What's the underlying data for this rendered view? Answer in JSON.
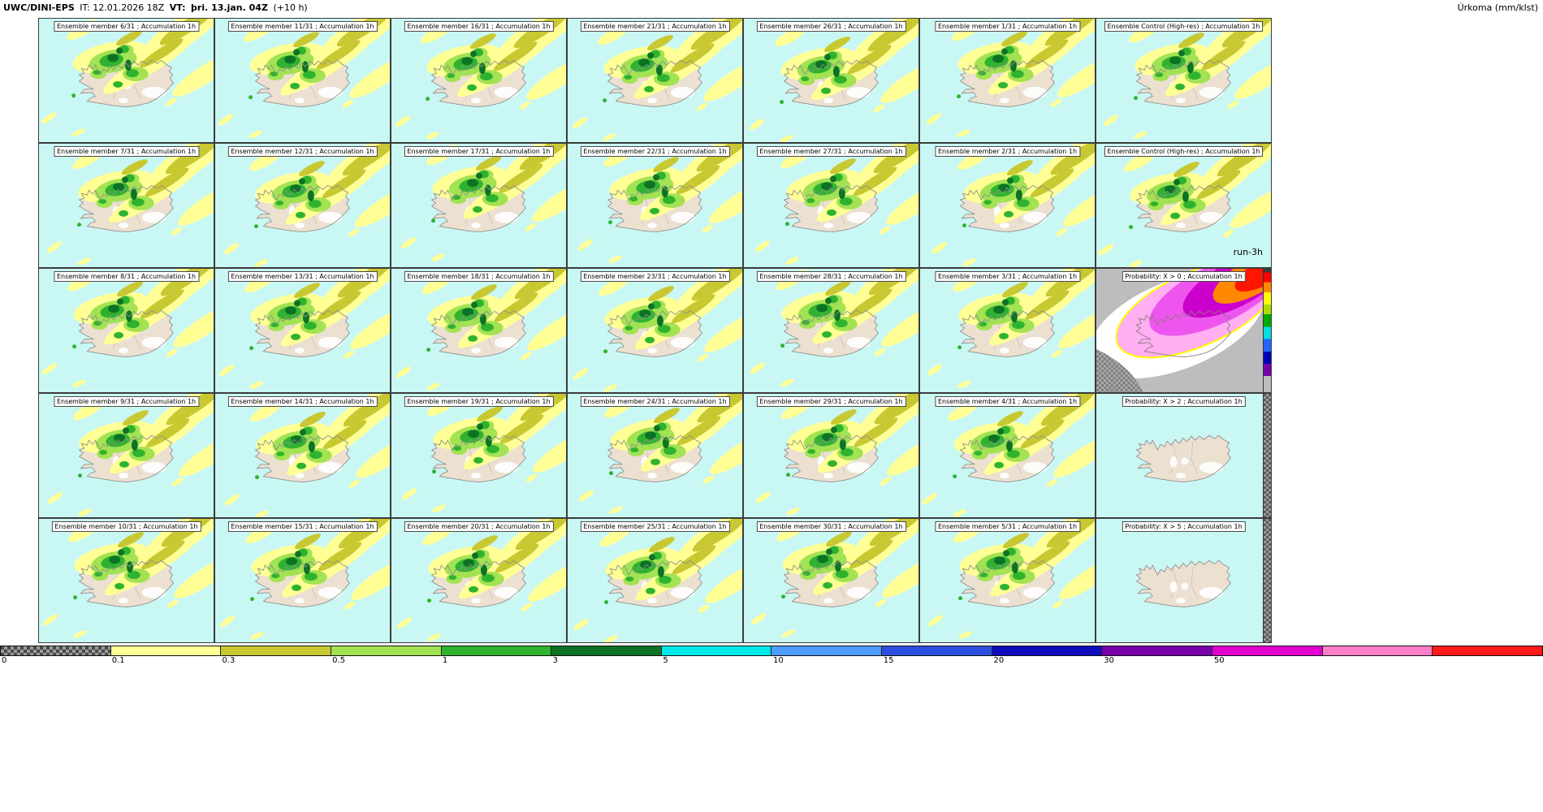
{
  "header": {
    "model": "UWC/DINI-EPS",
    "init": "IT: 12.01.2026 18Z",
    "valid_label": "VT:",
    "valid_value": "þri. 13.jan. 04Z",
    "offset": "(+10 h)",
    "unit": "Úrkoma (mm/klst)"
  },
  "colors": {
    "sea": "#c9f7f4",
    "land": "#ece0d1",
    "coast": "#8f8f8f",
    "yellow": "#ffff96",
    "olive": "#c8c832",
    "green_light": "#a2e253",
    "green": "#2fb32f",
    "green_dark": "#0d7224"
  },
  "panels": [
    {
      "type": "member",
      "title": "Ensemble member 6/31 ; Accumulation 1h"
    },
    {
      "type": "member",
      "title": "Ensemble member 11/31 ; Accumulation 1h"
    },
    {
      "type": "member",
      "title": "Ensemble member 16/31 ; Accumulation 1h"
    },
    {
      "type": "member",
      "title": "Ensemble member 21/31 ; Accumulation 1h"
    },
    {
      "type": "member",
      "title": "Ensemble member 26/31 ; Accumulation 1h"
    },
    {
      "type": "member",
      "title": "Ensemble member 1/31 ; Accumulation 1h"
    },
    {
      "type": "control",
      "title": "Ensemble Control (High-res) ; Accumulation 1h"
    },
    {
      "type": "member",
      "title": "Ensemble member 7/31 ; Accumulation 1h"
    },
    {
      "type": "member",
      "title": "Ensemble member 12/31 ; Accumulation 1h"
    },
    {
      "type": "member",
      "title": "Ensemble member 17/31 ; Accumulation 1h"
    },
    {
      "type": "member",
      "title": "Ensemble member 22/31 ; Accumulation 1h"
    },
    {
      "type": "member",
      "title": "Ensemble member 27/31 ; Accumulation 1h"
    },
    {
      "type": "member",
      "title": "Ensemble member 2/31 ; Accumulation 1h"
    },
    {
      "type": "control",
      "title": "Ensemble Control (High-res) ; Accumulation 1h",
      "corner_label": "run-3h"
    },
    {
      "type": "member",
      "title": "Ensemble member 8/31 ; Accumulation 1h"
    },
    {
      "type": "member",
      "title": "Ensemble member 13/31 ; Accumulation 1h"
    },
    {
      "type": "member",
      "title": "Ensemble member 18/31 ; Accumulation 1h"
    },
    {
      "type": "member",
      "title": "Ensemble member 23/31 ; Accumulation 1h"
    },
    {
      "type": "member",
      "title": "Ensemble member 28/31 ; Accumulation 1h"
    },
    {
      "type": "member",
      "title": "Ensemble member 3/31 ; Accumulation 1h"
    },
    {
      "type": "prob0",
      "title": "Probability: X > 0 ; Accumulation 1h",
      "strip": "rainbow"
    },
    {
      "type": "member",
      "title": "Ensemble member 9/31 ; Accumulation 1h"
    },
    {
      "type": "member",
      "title": "Ensemble member 14/31 ; Accumulation 1h"
    },
    {
      "type": "member",
      "title": "Ensemble member 19/31 ; Accumulation 1h"
    },
    {
      "type": "member",
      "title": "Ensemble member 24/31 ; Accumulation 1h"
    },
    {
      "type": "member",
      "title": "Ensemble member 29/31 ; Accumulation 1h"
    },
    {
      "type": "member",
      "title": "Ensemble member 4/31 ; Accumulation 1h"
    },
    {
      "type": "prob-empty",
      "title": "Probability: X > 2 ; Accumulation 1h",
      "strip": "checker"
    },
    {
      "type": "member",
      "title": "Ensemble member 10/31 ; Accumulation 1h"
    },
    {
      "type": "member",
      "title": "Ensemble member 15/31 ; Accumulation 1h"
    },
    {
      "type": "member",
      "title": "Ensemble member 20/31 ; Accumulation 1h"
    },
    {
      "type": "member",
      "title": "Ensemble member 25/31 ; Accumulation 1h"
    },
    {
      "type": "member",
      "title": "Ensemble member 30/31 ; Accumulation 1h"
    },
    {
      "type": "member",
      "title": "Ensemble member 5/31 ; Accumulation 1h"
    },
    {
      "type": "prob-empty",
      "title": "Probability: X > 5 ; Accumulation 1h",
      "strip": "checker"
    }
  ],
  "legend": {
    "segments": [
      {
        "label": "0",
        "color": "checker"
      },
      {
        "label": "0.1",
        "color": "#ffff96"
      },
      {
        "label": "0.3",
        "color": "#c8c832"
      },
      {
        "label": "0.5",
        "color": "#a2e253"
      },
      {
        "label": "1",
        "color": "#2fb32f"
      },
      {
        "label": "3",
        "color": "#0d7224"
      },
      {
        "label": "5",
        "color": "#00e8e8"
      },
      {
        "label": "10",
        "color": "#4f9dff"
      },
      {
        "label": "15",
        "color": "#2b50e0"
      },
      {
        "label": "20",
        "color": "#0d0dbb"
      },
      {
        "label": "30",
        "color": "#7a00aa"
      },
      {
        "label": "50",
        "color": "#e000d0"
      },
      {
        "label": "",
        "color": "#ff7ec8"
      },
      {
        "label": "",
        "color": "#ff1a1a"
      }
    ]
  }
}
